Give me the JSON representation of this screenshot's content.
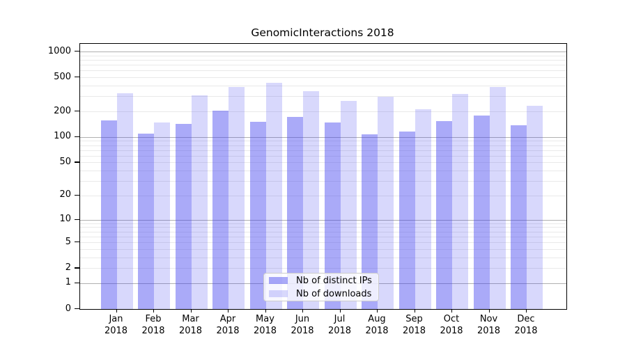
{
  "title": "GenomicInteractions 2018",
  "chart_data": {
    "type": "bar",
    "title": "GenomicInteractions 2018",
    "xlabel": "",
    "ylabel": "",
    "y_scale": "log1p",
    "ylim": [
      0,
      1230
    ],
    "y_ticks": [
      0,
      1,
      2,
      5,
      10,
      20,
      50,
      100,
      200,
      500,
      1000
    ],
    "y_major_gridlines": [
      1,
      10,
      100,
      1000
    ],
    "grid": "horizontal major + log-minor gridlines",
    "legend_position": "lower center",
    "categories": [
      "Jan",
      "Feb",
      "Mar",
      "Apr",
      "May",
      "Jun",
      "Jul",
      "Aug",
      "Sep",
      "Oct",
      "Nov",
      "Dec"
    ],
    "year_label": "2018",
    "series": [
      {
        "name": "Nb of distinct IPs",
        "color_hex_on_white": "#aaaaf7",
        "css_color": "rgba(62,62,238,0.44)",
        "values": [
          156,
          109,
          142,
          202,
          150,
          172,
          147,
          107,
          116,
          153,
          179,
          138
        ]
      },
      {
        "name": "Nb of downloads",
        "color_hex_on_white": "#d8d8fc",
        "css_color": "rgba(62,62,238,0.20)",
        "values": [
          326,
          148,
          310,
          388,
          435,
          342,
          263,
          295,
          210,
          320,
          386,
          234
        ]
      }
    ]
  },
  "colors": {
    "background": "#ffffff",
    "axis": "#000000",
    "text": "#000000",
    "major_grid": "#b0b0b0",
    "minor_grid": "#e9e9e9",
    "legend_border": "#cccccc"
  }
}
